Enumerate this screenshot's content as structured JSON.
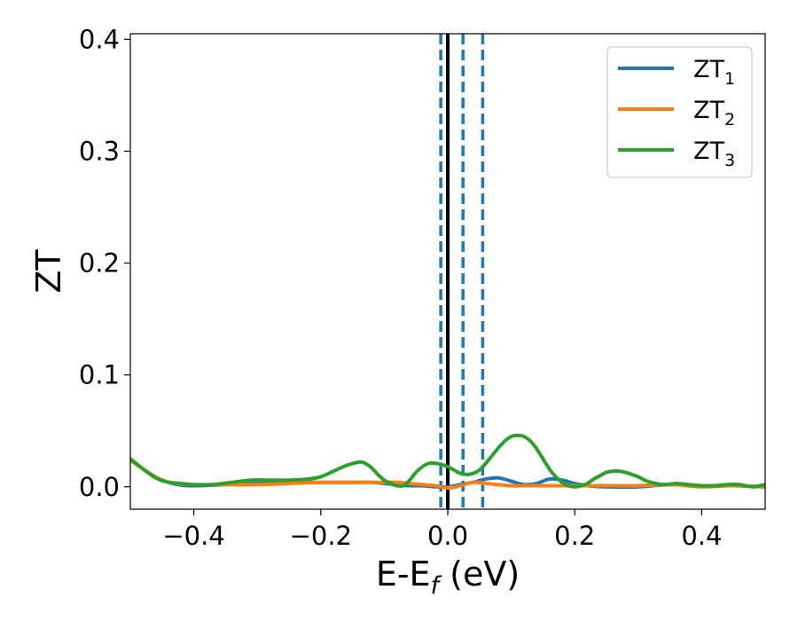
{
  "chart_data": {
    "type": "line",
    "xlabel": {
      "main": "E-E",
      "sub": "f",
      "tail": " (eV)"
    },
    "ylabel": "ZT",
    "xlim": [
      -0.5,
      0.5
    ],
    "ylim": [
      -0.02,
      0.405
    ],
    "x_ticks": [
      -0.4,
      -0.2,
      0.0,
      0.2,
      0.4
    ],
    "x_tick_labels": [
      "−0.4",
      "−0.2",
      "0.0",
      "0.2",
      "0.4"
    ],
    "y_ticks": [
      0.0,
      0.1,
      0.2,
      0.3,
      0.4
    ],
    "y_tick_labels": [
      "0.0",
      "0.1",
      "0.2",
      "0.3",
      "0.4"
    ],
    "grid": false,
    "legend_position": "top-right",
    "vertical_lines": [
      {
        "x": 0.0,
        "style": "solid",
        "color": "#000000"
      },
      {
        "x": -0.011,
        "style": "dashed",
        "color": "#1f77b4"
      },
      {
        "x": 0.024,
        "style": "dashed",
        "color": "#1f77b4"
      },
      {
        "x": 0.055,
        "style": "dashed",
        "color": "#1f77b4"
      }
    ],
    "series": [
      {
        "name": "ZT",
        "subscript": "1",
        "color": "#1f77b4",
        "x": [
          -0.5,
          -0.475,
          -0.45,
          -0.425,
          -0.4,
          -0.35,
          -0.3,
          -0.25,
          -0.2,
          -0.15,
          -0.12,
          -0.1,
          -0.08,
          -0.06,
          -0.04,
          -0.02,
          0.0,
          0.02,
          0.04,
          0.06,
          0.08,
          0.1,
          0.12,
          0.14,
          0.16,
          0.18,
          0.2,
          0.22,
          0.25,
          0.3,
          0.35,
          0.4,
          0.45,
          0.5
        ],
        "values": [
          0.024,
          0.014,
          0.006,
          0.002,
          0.001,
          0.002,
          0.003,
          0.004,
          0.004,
          0.004,
          0.004,
          0.003,
          0.002,
          0.001,
          0.001,
          0.0,
          0.0,
          0.002,
          0.004,
          0.007,
          0.008,
          0.005,
          0.002,
          0.003,
          0.007,
          0.006,
          0.003,
          0.001,
          0.0,
          0.0,
          0.002,
          0.001,
          0.001,
          0.0
        ]
      },
      {
        "name": "ZT",
        "subscript": "2",
        "color": "#ff7f0e",
        "x": [
          -0.5,
          -0.475,
          -0.45,
          -0.425,
          -0.4,
          -0.35,
          -0.3,
          -0.25,
          -0.2,
          -0.15,
          -0.12,
          -0.1,
          -0.08,
          -0.06,
          -0.04,
          -0.02,
          0.0,
          0.02,
          0.04,
          0.06,
          0.08,
          0.1,
          0.12,
          0.14,
          0.16,
          0.18,
          0.2,
          0.22,
          0.25,
          0.3,
          0.35,
          0.4,
          0.45,
          0.5
        ],
        "values": [
          0.024,
          0.014,
          0.006,
          0.003,
          0.002,
          0.002,
          0.002,
          0.003,
          0.004,
          0.004,
          0.004,
          0.004,
          0.004,
          0.003,
          0.002,
          0.001,
          -0.001,
          0.001,
          0.004,
          0.003,
          0.002,
          0.001,
          0.001,
          0.001,
          0.001,
          0.001,
          0.001,
          0.001,
          0.001,
          0.001,
          0.002,
          0.0,
          0.001,
          0.0
        ]
      },
      {
        "name": "ZT",
        "subscript": "3",
        "color": "#2ca02c",
        "x": [
          -0.5,
          -0.48,
          -0.46,
          -0.44,
          -0.42,
          -0.4,
          -0.37,
          -0.34,
          -0.31,
          -0.28,
          -0.25,
          -0.22,
          -0.2,
          -0.18,
          -0.16,
          -0.14,
          -0.13,
          -0.12,
          -0.11,
          -0.1,
          -0.09,
          -0.08,
          -0.07,
          -0.06,
          -0.05,
          -0.04,
          -0.03,
          -0.02,
          -0.01,
          0.0,
          0.01,
          0.02,
          0.03,
          0.04,
          0.05,
          0.06,
          0.07,
          0.08,
          0.09,
          0.1,
          0.11,
          0.12,
          0.13,
          0.14,
          0.15,
          0.16,
          0.17,
          0.18,
          0.19,
          0.2,
          0.21,
          0.22,
          0.23,
          0.24,
          0.25,
          0.26,
          0.27,
          0.28,
          0.29,
          0.3,
          0.31,
          0.32,
          0.34,
          0.36,
          0.38,
          0.4,
          0.42,
          0.44,
          0.46,
          0.48,
          0.5
        ],
        "values": [
          0.025,
          0.016,
          0.008,
          0.004,
          0.003,
          0.002,
          0.002,
          0.004,
          0.006,
          0.006,
          0.006,
          0.007,
          0.009,
          0.014,
          0.019,
          0.022,
          0.021,
          0.017,
          0.011,
          0.006,
          0.003,
          0.001,
          0.001,
          0.006,
          0.013,
          0.018,
          0.021,
          0.021,
          0.02,
          0.018,
          0.015,
          0.012,
          0.011,
          0.012,
          0.015,
          0.021,
          0.028,
          0.035,
          0.041,
          0.045,
          0.046,
          0.045,
          0.041,
          0.034,
          0.025,
          0.016,
          0.009,
          0.004,
          0.001,
          0.0,
          0.001,
          0.003,
          0.007,
          0.01,
          0.013,
          0.014,
          0.014,
          0.013,
          0.011,
          0.009,
          0.006,
          0.004,
          0.002,
          0.003,
          0.002,
          0.001,
          0.001,
          0.002,
          0.002,
          0.0,
          0.002
        ]
      }
    ]
  }
}
